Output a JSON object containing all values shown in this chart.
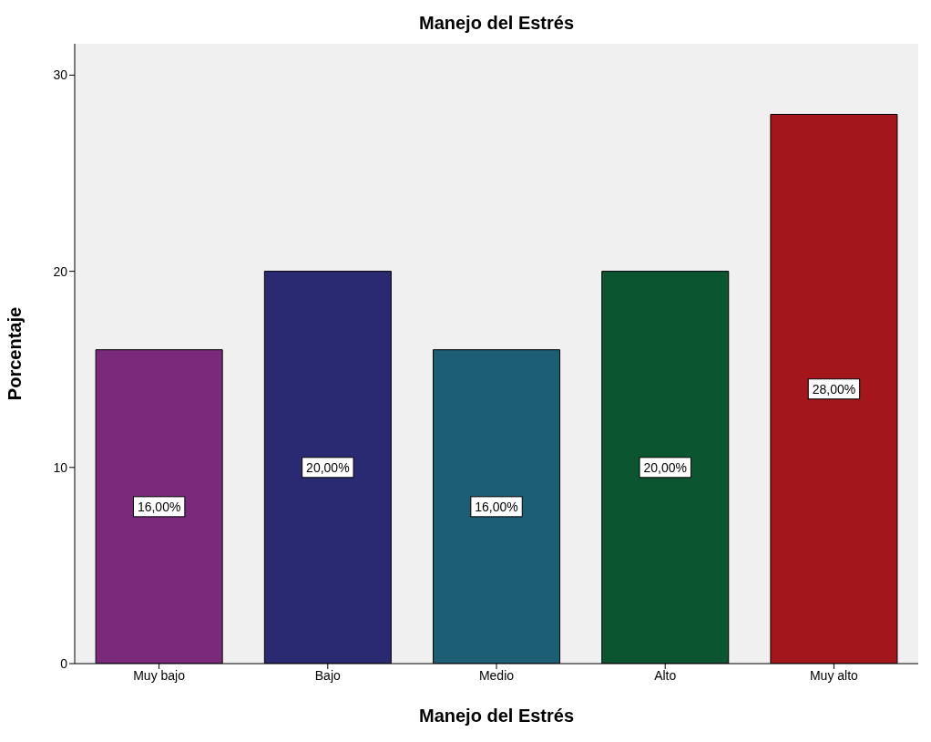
{
  "chart_data": {
    "type": "bar",
    "title": "Manejo del Estrés",
    "xlabel": "Manejo del Estrés",
    "ylabel": "Porcentaje",
    "categories": [
      "Muy bajo",
      "Bajo",
      "Medio",
      "Alto",
      "Muy alto"
    ],
    "values": [
      16,
      20,
      16,
      20,
      28
    ],
    "colors": [
      "#7b2a7b",
      "#292a72",
      "#1c5e74",
      "#0b5630",
      "#a3161b"
    ],
    "value_labels": [
      "16,00%",
      "20,00%",
      "16,00%",
      "20,00%",
      "28,00%"
    ],
    "ylim": [
      0,
      31.6
    ],
    "yticks": [
      0,
      10,
      20,
      30
    ],
    "grid": false
  }
}
